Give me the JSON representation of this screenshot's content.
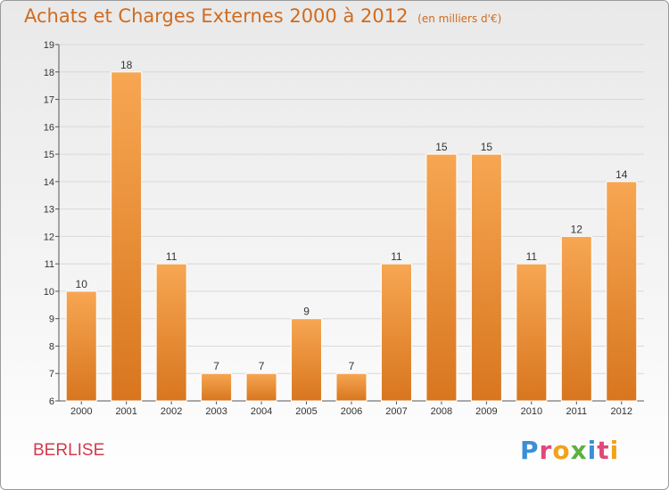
{
  "title": "Achats et Charges Externes 2000 à 2012",
  "subtitle": "(en milliers d'€)",
  "city": "BERLISE",
  "brand": "Proxiti",
  "colors": {
    "bar_light": "#f7a652",
    "bar_dark": "#d8761f",
    "title": "#d06b1e",
    "city": "#d43a4c"
  },
  "chart_data": {
    "type": "bar",
    "title": "Achats et Charges Externes 2000 à 2012",
    "subtitle": "(en milliers d'€)",
    "categories": [
      "2000",
      "2001",
      "2002",
      "2003",
      "2004",
      "2005",
      "2006",
      "2007",
      "2008",
      "2009",
      "2010",
      "2011",
      "2012"
    ],
    "values": [
      10,
      18,
      11,
      7,
      7,
      9,
      7,
      11,
      15,
      15,
      11,
      12,
      14
    ],
    "ylim": [
      6,
      19
    ],
    "yticks": [
      6,
      7,
      8,
      9,
      10,
      11,
      12,
      13,
      14,
      15,
      16,
      17,
      18,
      19
    ],
    "xlabel": "",
    "ylabel": "",
    "grid": true
  }
}
